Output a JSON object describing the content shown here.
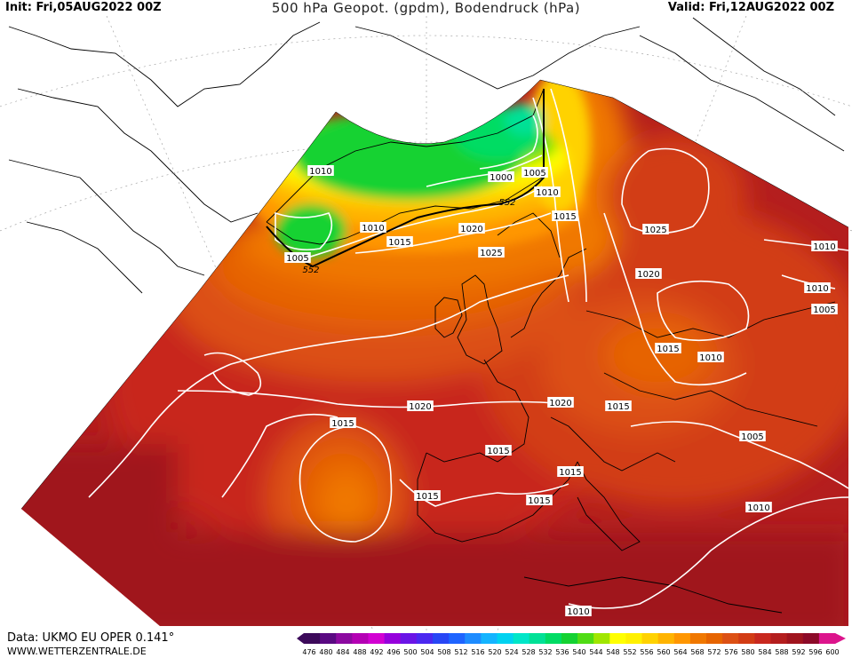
{
  "header": {
    "init": "Init: Fri,05AUG2022 00Z",
    "title": "500 hPa Geopot. (gpdm), Bodendruck (hPa)",
    "valid": "Valid: Fri,12AUG2022 00Z"
  },
  "footer": {
    "data_source": "Data: UKMO EU OPER 0.141°",
    "website": "WWW.WETTERZENTRALE.DE"
  },
  "isobar_labels": [
    "1010",
    "1005",
    "552",
    "1010",
    "1015",
    "1020",
    "1000",
    "1005",
    "1010",
    "552",
    "1015",
    "1025",
    "1025",
    "1010",
    "1020",
    "1010",
    "1005",
    "1015",
    "1010",
    "1020",
    "1020",
    "1015",
    "1015",
    "1015",
    "1015",
    "1015",
    "1015",
    "1005",
    "1010",
    "1010"
  ],
  "legend": {
    "ticks": [
      "476",
      "480",
      "484",
      "488",
      "492",
      "496",
      "500",
      "504",
      "508",
      "512",
      "516",
      "520",
      "524",
      "528",
      "532",
      "536",
      "540",
      "544",
      "548",
      "552",
      "556",
      "560",
      "564",
      "568",
      "572",
      "576",
      "580",
      "584",
      "588",
      "592",
      "596",
      "600"
    ],
    "colors": [
      "#3c0a5a",
      "#5a0a82",
      "#8c0aa0",
      "#b400b4",
      "#d200d2",
      "#9600dc",
      "#6a14e6",
      "#4b28f0",
      "#2846f5",
      "#1e64ff",
      "#1e8cff",
      "#14b4ff",
      "#00d2f0",
      "#00e6c8",
      "#00e196",
      "#00dc64",
      "#14d232",
      "#50dc14",
      "#a0e600",
      "#ffff00",
      "#fff000",
      "#ffd200",
      "#ffb400",
      "#ff9600",
      "#f07800",
      "#e66400",
      "#dc5014",
      "#d23c14",
      "#c8281e",
      "#b41e1e",
      "#a0141e",
      "#8c0a28",
      "#dc148c"
    ]
  },
  "colors": {
    "ocean_white": "#ffffff",
    "isobar": "#ffffff",
    "coast": "#000000"
  }
}
